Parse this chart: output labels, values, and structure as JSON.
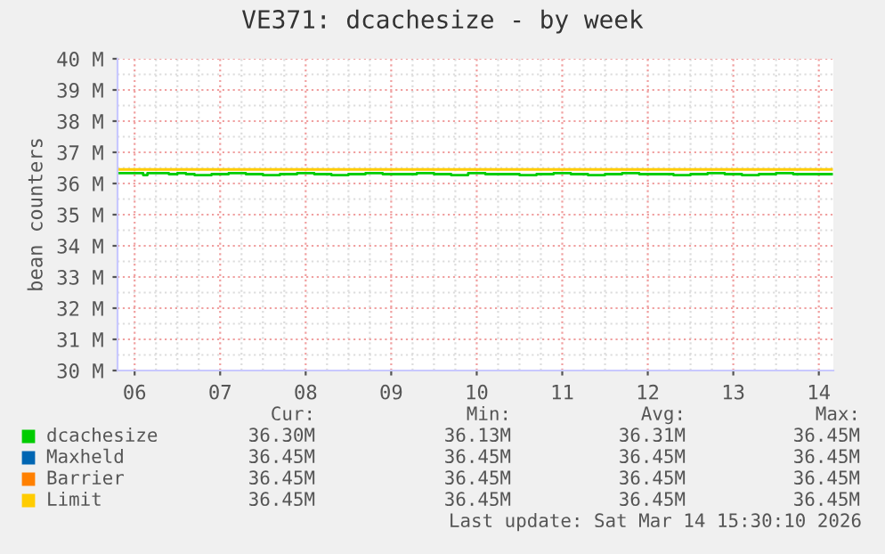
{
  "chart_data": {
    "type": "step",
    "title": "VE371: dcachesize - by week",
    "ylabel": "bean counters",
    "xlim": [
      6.3,
      14.67
    ],
    "xticks": [
      {
        "value": 6.5,
        "label": "06"
      },
      {
        "value": 7.5,
        "label": "07"
      },
      {
        "value": 8.5,
        "label": "08"
      },
      {
        "value": 9.5,
        "label": "09"
      },
      {
        "value": 10.5,
        "label": "10"
      },
      {
        "value": 11.5,
        "label": "11"
      },
      {
        "value": 12.5,
        "label": "12"
      },
      {
        "value": 13.5,
        "label": "13"
      },
      {
        "value": 14.5,
        "label": "14"
      }
    ],
    "ylim": [
      30,
      40
    ],
    "yticks": [
      {
        "value": 30,
        "label": "30 M"
      },
      {
        "value": 31,
        "label": "31 M"
      },
      {
        "value": 32,
        "label": "32 M"
      },
      {
        "value": 33,
        "label": "33 M"
      },
      {
        "value": 34,
        "label": "34 M"
      },
      {
        "value": 35,
        "label": "35 M"
      },
      {
        "value": 36,
        "label": "36 M"
      },
      {
        "value": 37,
        "label": "37 M"
      },
      {
        "value": 38,
        "label": "38 M"
      },
      {
        "value": 39,
        "label": "39 M"
      },
      {
        "value": 40,
        "label": "40 M"
      }
    ],
    "grid": true,
    "legend": "bottom",
    "series": [
      {
        "name": "dcachesize",
        "color": "#00cc00",
        "x": [
          6.3,
          6.6,
          6.65,
          6.9,
          7.0,
          7.1,
          7.2,
          7.4,
          7.6,
          7.8,
          8.0,
          8.2,
          8.4,
          8.6,
          8.8,
          9.0,
          9.2,
          9.4,
          9.6,
          9.8,
          10.0,
          10.2,
          10.4,
          10.6,
          10.8,
          11.0,
          11.2,
          11.4,
          11.6,
          11.8,
          12.0,
          12.2,
          12.4,
          12.6,
          12.8,
          13.0,
          13.2,
          13.4,
          13.6,
          13.8,
          14.0,
          14.2,
          14.4,
          14.65
        ],
        "values": [
          36.33,
          36.27,
          36.33,
          36.3,
          36.33,
          36.3,
          36.27,
          36.3,
          36.33,
          36.3,
          36.27,
          36.3,
          36.33,
          36.3,
          36.27,
          36.3,
          36.33,
          36.3,
          36.3,
          36.33,
          36.3,
          36.27,
          36.33,
          36.3,
          36.3,
          36.27,
          36.3,
          36.33,
          36.3,
          36.27,
          36.3,
          36.33,
          36.3,
          36.3,
          36.27,
          36.3,
          36.33,
          36.3,
          36.27,
          36.3,
          36.33,
          36.3,
          36.3,
          36.3
        ]
      },
      {
        "name": "Maxheld",
        "color": "#0066b3"
      },
      {
        "name": "Barrier",
        "color": "#ff8000"
      },
      {
        "name": "Limit",
        "color": "#ffcc00",
        "x": [
          6.3,
          14.65
        ],
        "values": [
          36.45,
          36.45
        ]
      }
    ],
    "annotations": [
      "Cur:",
      "Min:",
      "Avg:",
      "Max:",
      "36.30M",
      "36.13M",
      "36.31M",
      "36.45M",
      "36.45M",
      "36.45M",
      "36.45M",
      "36.45M",
      "36.45M",
      "36.45M",
      "36.45M",
      "36.45M",
      "36.45M",
      "36.45M",
      "36.45M",
      "36.45M",
      "Last update: Sat Mar 14 15:30:10 2026"
    ]
  }
}
